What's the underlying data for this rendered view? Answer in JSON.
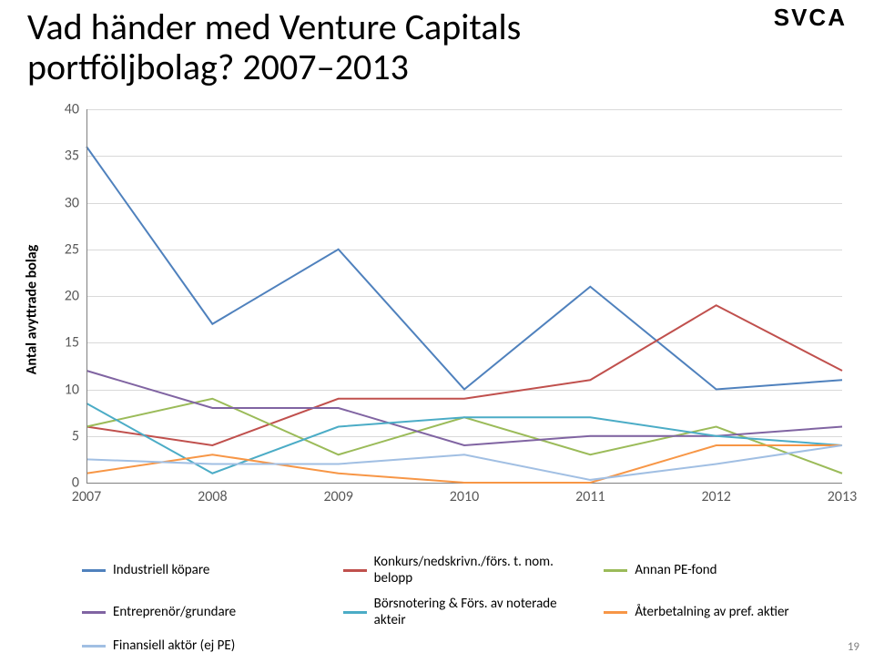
{
  "title_line1": "Vad händer med Venture Capitals",
  "title_line2": "portföljbolag? 2007‒2013",
  "logo_text": "SVCA",
  "page_number": "19",
  "chart": {
    "type": "line",
    "ylabel": "Antal avyttrade bolag",
    "ylabel_fontsize": 16,
    "ylim": [
      0,
      40
    ],
    "ytick_step": 5,
    "yticks": [
      0,
      5,
      10,
      15,
      20,
      25,
      30,
      35,
      40
    ],
    "categories": [
      "2007",
      "2008",
      "2009",
      "2010",
      "2011",
      "2012",
      "2013"
    ],
    "grid_color": "#d9d9d9",
    "axis_color": "#808080",
    "background_color": "#ffffff",
    "line_width": 2,
    "series": [
      {
        "name": "Industriell köpare",
        "color": "#4f81bd",
        "values": [
          36,
          17,
          25,
          10,
          21,
          10,
          11
        ]
      },
      {
        "name": "Konkurs/nedskrivn./förs. t. nom. belopp",
        "color": "#c0504d",
        "values": [
          6,
          4,
          9,
          9,
          11,
          19,
          12
        ]
      },
      {
        "name": "Annan PE-fond",
        "color": "#9bbb59",
        "values": [
          6,
          9,
          3,
          7,
          3,
          6,
          1
        ]
      },
      {
        "name": "Entreprenör/grundare",
        "color": "#8064a2",
        "values": [
          12,
          8,
          8,
          4,
          5,
          5,
          6
        ]
      },
      {
        "name": "Börsnotering & Förs. av noterade akteir",
        "color": "#4bacc6",
        "values": [
          8.5,
          1,
          6,
          7,
          7,
          5,
          4
        ]
      },
      {
        "name": "Återbetalning av pref. aktier",
        "color": "#f79646",
        "values": [
          1,
          3,
          1,
          0,
          0,
          4,
          4
        ]
      },
      {
        "name": "Finansiell aktör (ej PE)",
        "color": "#a1bfe3",
        "values": [
          2.5,
          2,
          2,
          3,
          0.3,
          2,
          4
        ]
      }
    ]
  },
  "legend_fontsize": 15
}
